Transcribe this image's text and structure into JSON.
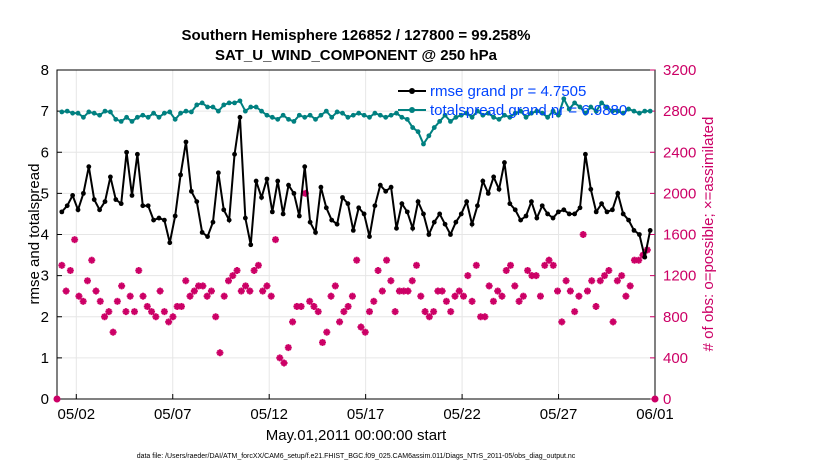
{
  "chart_data": {
    "type": "line",
    "title_line1": "Southern Hemisphere 126852 / 127800 = 99.258%",
    "title_line2": "SAT_U_WIND_COMPONENT @ 250 hPa",
    "xlabel": "May.01,2011 00:00:00 start",
    "ylabel": "rmse and totalspread",
    "ylabel_right": "# of obs: o=possible; ×=assimilated",
    "footnote": "data file: /Users/raeder/DAI/ATM_forcXX/CAM6_setup/f.e21.FHIST_BGC.f09_025.CAM6assim.011/Diags_NTrS_2011-05/obs_diag_output.nc",
    "xlim": [
      0,
      31
    ],
    "ylim": [
      0,
      8
    ],
    "ylim_right": [
      0,
      3200
    ],
    "x_tick_labels": [
      "05/02",
      "05/07",
      "05/12",
      "05/17",
      "05/22",
      "05/27",
      "06/01"
    ],
    "x_tick_positions": [
      1,
      6,
      11,
      16,
      21,
      26,
      31
    ],
    "y_tick_labels": [
      "0",
      "1",
      "2",
      "3",
      "4",
      "5",
      "6",
      "7",
      "8"
    ],
    "y_right_tick_labels": [
      "0",
      "400",
      "800",
      "1200",
      "1600",
      "2000",
      "2400",
      "2800",
      "3200"
    ],
    "legend_position": "top-right",
    "series": [
      {
        "name": "rmse grand pr = 4.7505",
        "color": "#000000",
        "axis": "left",
        "values": [
          4.55,
          4.7,
          4.95,
          4.6,
          5.0,
          5.65,
          4.85,
          4.6,
          4.8,
          5.4,
          4.85,
          4.75,
          6.0,
          4.95,
          5.95,
          4.7,
          4.7,
          4.35,
          4.4,
          4.35,
          3.8,
          4.45,
          5.45,
          6.25,
          5.05,
          4.8,
          4.05,
          3.95,
          4.3,
          5.5,
          4.6,
          4.35,
          5.95,
          6.85,
          4.4,
          3.75,
          5.3,
          4.9,
          5.35,
          4.55,
          5.3,
          4.5,
          5.2,
          5.0,
          4.45,
          5.65,
          4.3,
          4.05,
          5.15,
          4.65,
          4.35,
          4.25,
          4.9,
          4.75,
          4.1,
          4.65,
          4.5,
          3.95,
          4.7,
          5.2,
          5.05,
          5.15,
          4.15,
          4.75,
          4.55,
          4.15,
          4.8,
          4.5,
          4.0,
          4.3,
          4.5,
          4.25,
          4.0,
          4.3,
          4.5,
          4.8,
          4.25,
          4.7,
          5.3,
          5.0,
          5.4,
          5.1,
          5.75,
          4.75,
          4.6,
          4.35,
          4.45,
          4.8,
          4.4,
          4.7,
          4.5,
          4.4,
          4.55,
          4.6,
          4.5,
          4.5,
          4.65,
          5.95,
          5.1,
          4.55,
          4.75,
          4.55,
          4.6,
          5.0,
          4.5,
          4.35,
          4.1,
          4.0,
          3.45,
          4.1
        ]
      },
      {
        "name": "totalspread grand pr = 6.9880",
        "color": "#008080",
        "axis": "left",
        "values": [
          6.98,
          7.0,
          6.95,
          6.95,
          6.85,
          6.98,
          6.95,
          6.9,
          7.0,
          6.98,
          6.8,
          6.75,
          6.85,
          6.75,
          6.85,
          6.9,
          6.85,
          6.95,
          6.85,
          6.95,
          6.98,
          6.8,
          6.95,
          7.0,
          6.98,
          7.15,
          7.2,
          7.1,
          7.1,
          7.0,
          7.15,
          7.2,
          7.2,
          7.25,
          7.0,
          7.1,
          7.1,
          7.0,
          6.9,
          6.85,
          6.8,
          6.9,
          6.8,
          6.75,
          6.9,
          6.85,
          6.9,
          6.8,
          6.9,
          7.0,
          6.85,
          6.98,
          6.95,
          6.85,
          6.9,
          6.95,
          6.9,
          6.85,
          6.95,
          6.9,
          6.85,
          6.9,
          6.95,
          6.85,
          6.8,
          6.6,
          6.5,
          6.2,
          6.4,
          6.6,
          6.75,
          6.9,
          6.75,
          6.85,
          6.9,
          6.95,
          6.85,
          7.0,
          6.9,
          6.95,
          6.85,
          6.8,
          6.9,
          6.85,
          6.95,
          7.0,
          6.85,
          6.95,
          7.0,
          6.95,
          6.85,
          7.0,
          6.9,
          7.3,
          7.05,
          7.2,
          7.1,
          6.95,
          7.1,
          7.0,
          7.2,
          7.1,
          7.0,
          7.0,
          6.95,
          7.05,
          7.0,
          6.95,
          7.0,
          7.0
        ]
      },
      {
        "name": "obs assimilated",
        "color": "#cc0066",
        "axis": "right",
        "values": [
          1300,
          1050,
          1250,
          1550,
          1000,
          950,
          1150,
          1350,
          1050,
          950,
          800,
          850,
          650,
          950,
          1100,
          850,
          1000,
          850,
          1250,
          1000,
          900,
          850,
          800,
          1050,
          850,
          750,
          800,
          900,
          900,
          1150,
          1000,
          1050,
          1100,
          1100,
          1000,
          1050,
          800,
          450,
          1000,
          1150,
          1200,
          1250,
          1050,
          1100,
          1050,
          1250,
          1300,
          1050,
          1100,
          1000,
          1550,
          400,
          350,
          500,
          750,
          900,
          900,
          2000,
          950,
          900,
          850,
          550,
          650,
          1000,
          1100,
          750,
          850,
          900,
          1000,
          1350,
          700,
          650,
          850,
          950,
          1250,
          1050,
          1350,
          1150,
          850,
          1050,
          1050,
          1050,
          1150,
          1300,
          1000,
          850,
          800,
          850,
          1050,
          1050,
          950,
          850,
          1000,
          1050,
          1000,
          1200,
          950,
          1300,
          800,
          800,
          1100,
          950,
          1050,
          1000,
          1250,
          1300,
          1100,
          950,
          1000,
          1250,
          1200,
          1200,
          1000,
          1300,
          1350,
          1300,
          1050,
          750,
          1150,
          1050,
          850,
          1000,
          1600,
          1050,
          1150,
          900,
          1150,
          1200,
          1250,
          750,
          1150,
          1200,
          1000,
          1100,
          1350,
          1350,
          1400,
          1450
        ]
      }
    ]
  }
}
